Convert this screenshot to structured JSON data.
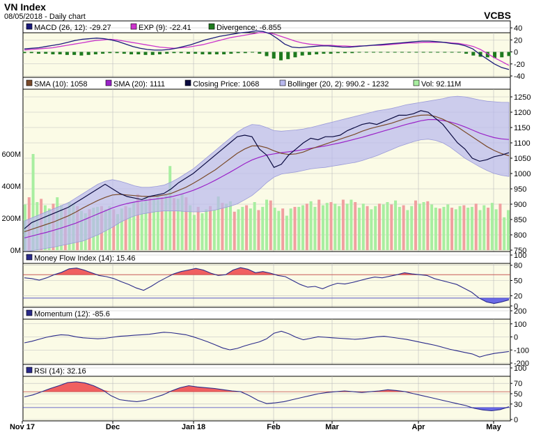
{
  "header": {
    "title": "VN Index",
    "subtitle": "08/05/2018 - Daily chart",
    "source": "VCBS"
  },
  "colors": {
    "panel_bg": "#fbfbe6",
    "macd": "#1a1a7a",
    "exp": "#cc33cc",
    "divergence": "#1e7a1e",
    "sma10": "#7a4a2a",
    "sma20": "#9a22c8",
    "close": "#0a0a40",
    "bollinger": "#b8b8ee",
    "vol_up": "#a8eea0",
    "vol_down": "#f0a0a0",
    "mfi": "#2a2a8a",
    "overbought_fill": "#f06060",
    "oversold_fill": "#6a6ae6",
    "momentum": "#2a2a8a",
    "rsi": "#2a2a8a"
  },
  "chart_data": [
    {
      "type": "line",
      "name": "MACD",
      "legend": [
        "MACD (26, 12): -29.27",
        "EXP (9): -22.41",
        "Divergence: -6.855"
      ],
      "y_ticks": [
        "40",
        "20",
        "0",
        "-20",
        "-40"
      ],
      "ylim": [
        -40,
        40
      ],
      "series": [
        {
          "name": "MACD",
          "values": [
            5,
            6,
            7,
            9,
            11,
            13,
            16,
            19,
            21,
            22,
            23,
            22,
            20,
            17,
            13,
            9,
            6,
            4,
            3,
            3,
            4,
            6,
            9,
            12,
            16,
            20,
            23,
            26,
            28,
            30,
            32,
            33,
            35,
            34,
            30,
            22,
            13,
            8,
            7,
            8,
            9,
            10,
            10,
            9,
            8,
            8,
            9,
            10,
            11,
            12,
            13,
            14,
            15,
            16,
            17,
            18,
            18,
            17,
            16,
            14,
            13,
            10,
            5,
            -4,
            -12,
            -20,
            -26,
            -29.27
          ]
        },
        {
          "name": "EXP",
          "values": [
            3,
            4,
            5,
            6,
            7,
            9,
            11,
            13,
            15,
            17,
            19,
            20,
            21,
            20,
            18,
            16,
            14,
            12,
            10,
            8,
            7,
            6,
            7,
            8,
            10,
            12,
            15,
            18,
            21,
            24,
            26,
            28,
            30,
            32,
            32,
            30,
            26,
            22,
            18,
            15,
            13,
            12,
            11,
            11,
            10,
            10,
            9,
            10,
            10,
            11,
            11,
            12,
            13,
            14,
            15,
            15,
            16,
            16,
            16,
            16,
            15,
            14,
            12,
            9,
            4,
            -3,
            -10,
            -16,
            -22.41
          ]
        },
        {
          "name": "Divergence",
          "values": [
            -2,
            -2,
            -3,
            -3,
            -4,
            -4,
            -5,
            -5,
            -6,
            -5,
            -4,
            -3,
            -2,
            -2,
            -3,
            -4,
            -4,
            -5,
            -5,
            -4,
            -3,
            -2,
            -2,
            -3,
            -3,
            -4,
            -4,
            -4,
            -4,
            -3,
            -2,
            -2,
            -1,
            -3,
            -7,
            -11,
            -14,
            -12,
            -9,
            -6,
            -5,
            -4,
            -3,
            -3,
            -2,
            -2,
            -2,
            -1,
            -1,
            -1,
            -1,
            -1,
            -1,
            -1,
            -1,
            -1,
            -1,
            -1,
            -1,
            -1,
            -1,
            -1,
            -3,
            -6,
            -8,
            -9,
            -10,
            -9,
            -6.855
          ]
        }
      ]
    },
    {
      "type": "line",
      "name": "Price",
      "legend": [
        "SMA (10): 1058",
        "SMA (20): 1111",
        "Closing Price: 1068",
        "Bollinger (20, 2): 990.2 - 1232",
        "Vol: 92.11M"
      ],
      "y_ticks": [
        "1250",
        "1200",
        "1150",
        "1100",
        "1050",
        "1000",
        "950",
        "900",
        "850",
        "800",
        "750"
      ],
      "ylim": [
        750,
        1275
      ],
      "vol_ticks": [
        "600M",
        "400M",
        "200M",
        "0M"
      ],
      "series": [
        {
          "name": "Closing Price",
          "values": [
            820,
            840,
            850,
            860,
            870,
            880,
            890,
            905,
            920,
            935,
            950,
            965,
            950,
            935,
            925,
            920,
            915,
            925,
            930,
            935,
            950,
            970,
            985,
            1000,
            1020,
            1040,
            1060,
            1080,
            1100,
            1120,
            1125,
            1120,
            1080,
            1060,
            1020,
            1030,
            1060,
            1080,
            1100,
            1115,
            1110,
            1120,
            1120,
            1125,
            1140,
            1150,
            1160,
            1165,
            1160,
            1170,
            1180,
            1190,
            1190,
            1195,
            1205,
            1200,
            1180,
            1160,
            1130,
            1100,
            1080,
            1050,
            1040,
            1045,
            1055,
            1060,
            1068
          ]
        },
        {
          "name": "SMA (10)",
          "values": [
            810,
            818,
            826,
            834,
            842,
            852,
            862,
            874,
            888,
            900,
            912,
            922,
            930,
            932,
            930,
            928,
            926,
            925,
            926,
            930,
            935,
            945,
            955,
            968,
            982,
            997,
            1012,
            1030,
            1048,
            1066,
            1080,
            1090,
            1090,
            1084,
            1074,
            1066,
            1062,
            1064,
            1070,
            1080,
            1088,
            1096,
            1104,
            1112,
            1120,
            1128,
            1138,
            1146,
            1152,
            1158,
            1164,
            1172,
            1180,
            1186,
            1190,
            1191,
            1186,
            1177,
            1165,
            1152,
            1136,
            1120,
            1104,
            1088,
            1075,
            1065,
            1058
          ]
        },
        {
          "name": "SMA (20)",
          "values": [
            790,
            796,
            802,
            808,
            815,
            822,
            830,
            838,
            848,
            858,
            868,
            878,
            888,
            896,
            902,
            907,
            911,
            914,
            917,
            920,
            924,
            930,
            937,
            945,
            955,
            966,
            978,
            991,
            1004,
            1018,
            1032,
            1044,
            1053,
            1060,
            1064,
            1068,
            1071,
            1074,
            1078,
            1082,
            1086,
            1090,
            1095,
            1100,
            1106,
            1112,
            1118,
            1125,
            1132,
            1139,
            1146,
            1153,
            1160,
            1166,
            1172,
            1176,
            1176,
            1173,
            1168,
            1161,
            1152,
            1142,
            1132,
            1124,
            1117,
            1113,
            1111
          ]
        },
        {
          "name": "Bollinger Upper",
          "values": [
            845,
            855,
            865,
            875,
            885,
            895,
            905,
            920,
            935,
            950,
            965,
            975,
            980,
            975,
            968,
            960,
            955,
            955,
            958,
            962,
            972,
            985,
            1000,
            1015,
            1035,
            1055,
            1075,
            1095,
            1115,
            1135,
            1150,
            1160,
            1158,
            1150,
            1140,
            1138,
            1140,
            1142,
            1145,
            1150,
            1156,
            1162,
            1168,
            1174,
            1180,
            1186,
            1192,
            1198,
            1204,
            1208,
            1212,
            1218,
            1224,
            1228,
            1232,
            1236,
            1240,
            1244,
            1250,
            1252,
            1250,
            1245,
            1240,
            1236,
            1234,
            1232,
            1232
          ]
        },
        {
          "name": "Bollinger Lower",
          "values": [
            745,
            748,
            752,
            756,
            760,
            765,
            770,
            775,
            780,
            790,
            800,
            812,
            825,
            840,
            852,
            862,
            868,
            872,
            876,
            878,
            878,
            878,
            876,
            875,
            875,
            877,
            881,
            887,
            893,
            901,
            914,
            928,
            948,
            970,
            988,
            998,
            1002,
            1005,
            1010,
            1015,
            1018,
            1020,
            1024,
            1028,
            1032,
            1036,
            1042,
            1050,
            1058,
            1068,
            1078,
            1088,
            1096,
            1104,
            1110,
            1112,
            1108,
            1100,
            1086,
            1068,
            1050,
            1036,
            1022,
            1010,
            1000,
            994,
            990.2
          ]
        }
      ],
      "volume": [
        285,
        330,
        600,
        300,
        320,
        280,
        260,
        290,
        330,
        280,
        260,
        300,
        290,
        275,
        245,
        230,
        255,
        265,
        270,
        275,
        255,
        275,
        255,
        225,
        260,
        275,
        265,
        300,
        350,
        300,
        335,
        330,
        320,
        345,
        330,
        345,
        525,
        325,
        320,
        350,
        330,
        280,
        220,
        270,
        230,
        255,
        275,
        250,
        335,
        295,
        290,
        305,
        240,
        255,
        270,
        280,
        260,
        300,
        250,
        270,
        315,
        310,
        265,
        245,
        260,
        215,
        260,
        270,
        270,
        280,
        290,
        305,
        270,
        315,
        280,
        295,
        300,
        290,
        275,
        315,
        290,
        315,
        300,
        265,
        290,
        275,
        255,
        275,
        290,
        285,
        300,
        285,
        310,
        270,
        280,
        250,
        275,
        310,
        290,
        300,
        305,
        285,
        265,
        260,
        270,
        285,
        265,
        255,
        275,
        280,
        265,
        270,
        290,
        250,
        280,
        265,
        295,
        255,
        290,
        205,
        250
      ]
    },
    {
      "type": "area",
      "name": "Money Flow Index",
      "legend": [
        "Money Flow Index (14): 15.46"
      ],
      "y_ticks": [
        "100",
        "80",
        "50",
        "20",
        "0"
      ],
      "ylim": [
        0,
        100
      ],
      "series": [
        {
          "name": "MFI",
          "values": [
            72,
            70,
            66,
            72,
            80,
            86,
            95,
            97,
            92,
            85,
            78,
            75,
            70,
            62,
            55,
            46,
            40,
            50,
            62,
            72,
            82,
            88,
            92,
            96,
            92,
            84,
            78,
            80,
            92,
            98,
            94,
            85,
            88,
            84,
            78,
            75,
            65,
            55,
            48,
            50,
            44,
            52,
            58,
            56,
            60,
            65,
            70,
            74,
            72,
            76,
            80,
            85,
            82,
            80,
            78,
            70,
            65,
            60,
            55,
            45,
            35,
            20,
            10,
            6,
            10,
            15.46
          ]
        }
      ]
    },
    {
      "type": "line",
      "name": "Momentum",
      "legend": [
        "Momentum (12): -85.6"
      ],
      "y_ticks": [
        "200",
        "100",
        "0",
        "-100",
        "-200"
      ],
      "ylim": [
        -200,
        200
      ],
      "series": [
        {
          "name": "Momentum",
          "values": [
            0,
            15,
            35,
            55,
            70,
            80,
            75,
            60,
            50,
            45,
            40,
            45,
            55,
            65,
            70,
            75,
            80,
            85,
            95,
            105,
            100,
            90,
            80,
            60,
            35,
            10,
            -20,
            -50,
            -70,
            -55,
            -30,
            -10,
            10,
            40,
            95,
            115,
            90,
            55,
            30,
            45,
            60,
            55,
            50,
            45,
            40,
            35,
            40,
            50,
            60,
            65,
            55,
            45,
            35,
            20,
            5,
            -10,
            -25,
            -45,
            -65,
            -80,
            -95,
            -110,
            -140,
            -120,
            -105,
            -95,
            -85.6
          ]
        }
      ]
    },
    {
      "type": "area",
      "name": "RSI",
      "legend": [
        "RSI (14): 32.16"
      ],
      "y_ticks": [
        "100",
        "70",
        "50",
        "30",
        "0"
      ],
      "ylim": [
        0,
        100
      ],
      "series": [
        {
          "name": "RSI",
          "values": [
            57,
            62,
            70,
            78,
            85,
            93,
            95,
            92,
            85,
            75,
            60,
            50,
            47,
            45,
            48,
            55,
            62,
            72,
            80,
            85,
            82,
            80,
            78,
            75,
            72,
            70,
            60,
            48,
            40,
            42,
            45,
            50,
            55,
            60,
            65,
            68,
            70,
            72,
            70,
            68,
            70,
            72,
            75,
            73,
            70,
            65,
            60,
            55,
            50,
            45,
            40,
            35,
            28,
            24,
            22,
            25,
            32.16
          ]
        }
      ]
    },
    {
      "type": "axis",
      "name": "Date axis",
      "x_ticks": [
        "Nov 17",
        "Dec",
        "Jan 18",
        "Feb",
        "Mar",
        "Apr",
        "May"
      ]
    }
  ]
}
